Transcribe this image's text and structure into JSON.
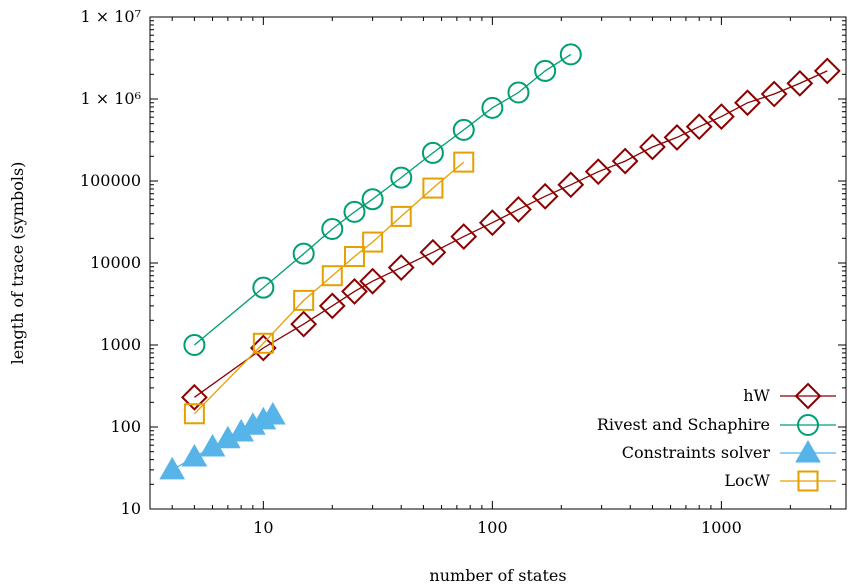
{
  "chart_data": {
    "type": "scatter",
    "xlabel": "number of states",
    "ylabel": "length of trace (symbols)",
    "xscale": "log",
    "yscale": "log",
    "xlim": [
      3.2,
      3500
    ],
    "ylim": [
      10,
      10000000
    ],
    "x_ticks": [
      {
        "value": 10,
        "label": "10"
      },
      {
        "value": 100,
        "label": "100"
      },
      {
        "value": 1000,
        "label": "1000"
      }
    ],
    "y_ticks": [
      {
        "value": 10,
        "label": "10"
      },
      {
        "value": 100,
        "label": "100"
      },
      {
        "value": 1000,
        "label": "1000"
      },
      {
        "value": 10000,
        "label": "10000"
      },
      {
        "value": 100000,
        "label": "100000"
      },
      {
        "value": 1000000,
        "label": "1 × 10⁶"
      },
      {
        "value": 10000000,
        "label": "1 × 10⁷"
      }
    ],
    "grid": false,
    "legend_position": "bottom-right",
    "series": [
      {
        "name": "hW",
        "marker": "diamond",
        "color": "#8b0000",
        "points": [
          [
            5,
            230
          ],
          [
            10,
            920
          ],
          [
            15,
            1800
          ],
          [
            20,
            3000
          ],
          [
            25,
            4500
          ],
          [
            30,
            6000
          ],
          [
            40,
            8800
          ],
          [
            55,
            13500
          ],
          [
            75,
            21000
          ],
          [
            100,
            31000
          ],
          [
            130,
            45000
          ],
          [
            170,
            65000
          ],
          [
            220,
            90000
          ],
          [
            290,
            130000
          ],
          [
            380,
            175000
          ],
          [
            500,
            260000
          ],
          [
            640,
            340000
          ],
          [
            800,
            460000
          ],
          [
            1000,
            610000
          ],
          [
            1300,
            900000
          ],
          [
            1700,
            1150000
          ],
          [
            2200,
            1550000
          ],
          [
            2900,
            2200000
          ]
        ]
      },
      {
        "name": "Rivest and Schaphire",
        "marker": "circle",
        "color": "#009e73",
        "points": [
          [
            5,
            1000
          ],
          [
            10,
            5000
          ],
          [
            15,
            13000
          ],
          [
            20,
            26000
          ],
          [
            25,
            42000
          ],
          [
            30,
            60000
          ],
          [
            40,
            110000
          ],
          [
            55,
            220000
          ],
          [
            75,
            420000
          ],
          [
            100,
            780000
          ],
          [
            130,
            1200000
          ],
          [
            170,
            2200000
          ],
          [
            220,
            3500000
          ]
        ]
      },
      {
        "name": "Constraints solver",
        "marker": "triangle",
        "color": "#56b4e9",
        "points": [
          [
            4,
            30
          ],
          [
            5,
            43
          ],
          [
            6,
            57
          ],
          [
            7,
            72
          ],
          [
            8,
            87
          ],
          [
            9,
            105
          ],
          [
            10,
            122
          ],
          [
            11,
            140
          ]
        ]
      },
      {
        "name": "LocW",
        "marker": "square",
        "color": "#e69f00",
        "points": [
          [
            5,
            145
          ],
          [
            10,
            1050
          ],
          [
            15,
            3500
          ],
          [
            20,
            7000
          ],
          [
            25,
            12000
          ],
          [
            30,
            18000
          ],
          [
            40,
            37000
          ],
          [
            55,
            82000
          ],
          [
            75,
            170000
          ]
        ]
      }
    ]
  }
}
